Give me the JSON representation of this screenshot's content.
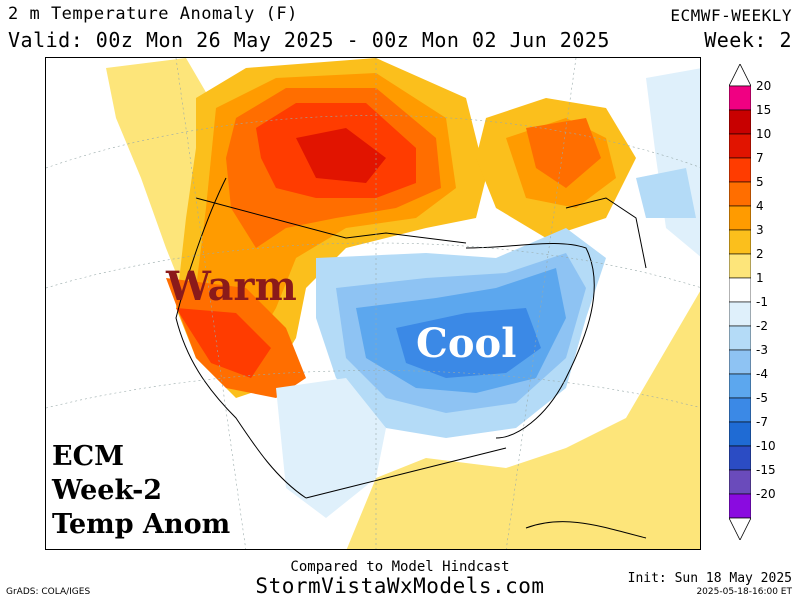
{
  "header": {
    "title": "2 m Temperature Anomaly (F)",
    "valid": "Valid: 00z Mon 26 May 2025 - 00z Mon 02 Jun 2025",
    "model": "ECMWF-WEEKLY",
    "week": "Week: 2"
  },
  "map": {
    "label_warm": "Warm",
    "label_cool": "Cool",
    "overlay_lines": [
      "ECM",
      "Week-2",
      "Temp Anom"
    ]
  },
  "colorbar": {
    "levels": [
      "20",
      "15",
      "10",
      "7",
      "5",
      "4",
      "3",
      "2",
      "1",
      "-1",
      "-2",
      "-3",
      "-4",
      "-5",
      "-7",
      "-10",
      "-15",
      "-20"
    ],
    "colors": [
      "#f00082",
      "#c80000",
      "#e11400",
      "#ff3c00",
      "#ff6e00",
      "#ff9b00",
      "#fbbf1c",
      "#fde57a",
      "#ffffff",
      "#dff0fb",
      "#b4dbf7",
      "#8ec3f3",
      "#5ca7ee",
      "#3b89e6",
      "#1f6bd4",
      "#2b4cc4",
      "#6a4bbb",
      "#8a0be0"
    ]
  },
  "footer": {
    "compared": "Compared to Model Hindcast",
    "site": "StormVistaWxModels.com",
    "grads": "GrADS: COLA/IGES",
    "init": "Init: Sun 18 May 2025",
    "timestamp": "2025-05-18-16:00 ET"
  }
}
